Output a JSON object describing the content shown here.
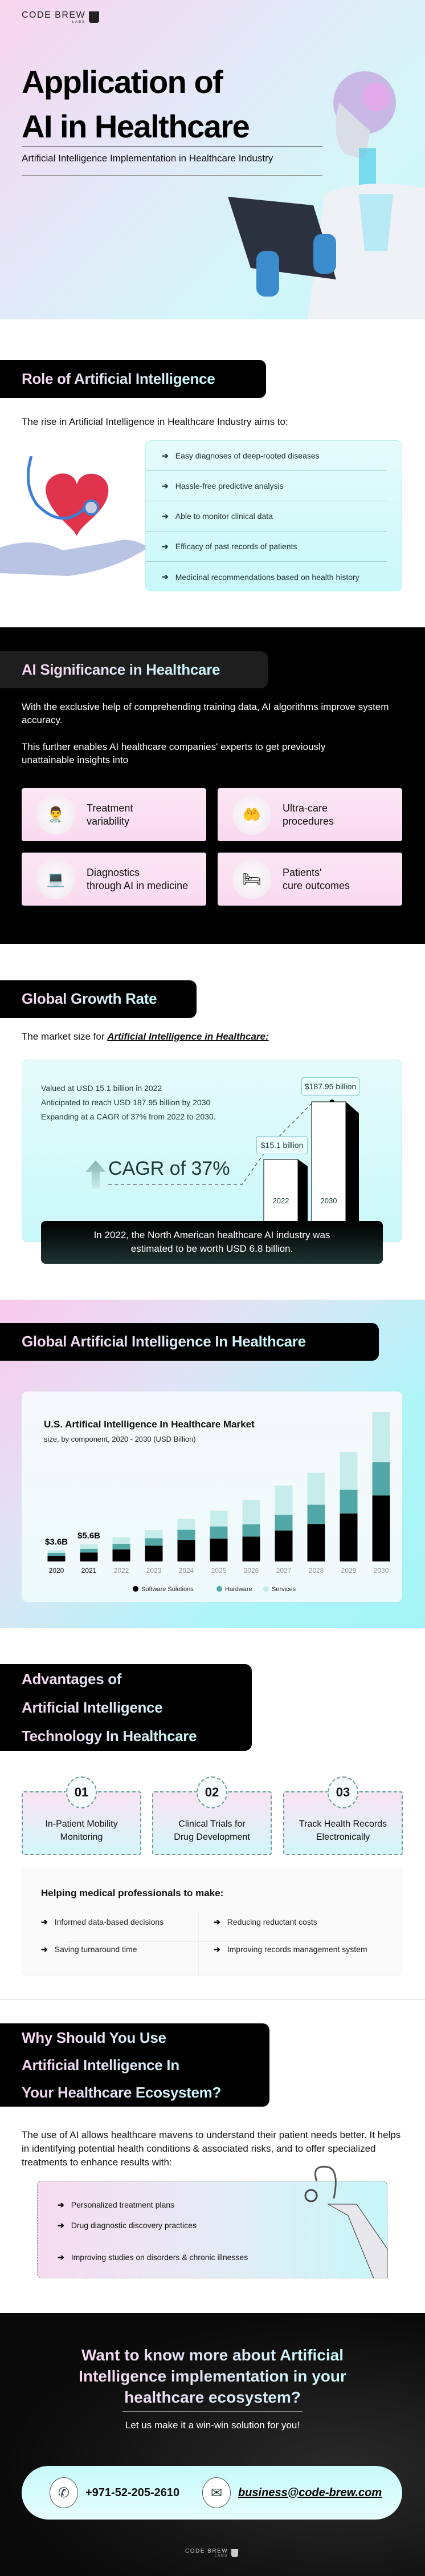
{
  "brand": {
    "name": "CODE BREW",
    "sub": "LABS"
  },
  "hero": {
    "title_line1": "Application of",
    "title_line2": "AI in Healthcare",
    "subtitle": "Artificial Intelligence Implementation in Healthcare Industry"
  },
  "role": {
    "title": "Role of Artificial Intelligence",
    "intro": "The rise in Artificial Intelligence in Healthcare Industry aims to:",
    "items": [
      "Easy diagnoses of deep-rooted diseases",
      "Hassle-free predictive analysis",
      "Able to monitor clinical data",
      "Efficacy of past records of patients",
      "Medicinal recommendations based on health history"
    ]
  },
  "significance": {
    "title": "AI Significance in Healthcare",
    "para1": "With the exclusive help of comprehending training data, AI algorithms improve system accuracy.",
    "para2": "This further enables AI healthcare companies' experts to get previously unattainable insights into",
    "cards": [
      {
        "label": "Treatment\nvariability",
        "icon": "doctor-icon"
      },
      {
        "label": "Ultra-care\nprocedures",
        "icon": "heart-hand-icon"
      },
      {
        "label": "Diagnostics\nthrough AI in medicine",
        "icon": "laptop-diagnostics-icon"
      },
      {
        "label": "Patients'\ncure outcomes",
        "icon": "patient-care-icon"
      }
    ]
  },
  "growth": {
    "title": "Global Growth Rate",
    "intro_prefix": "The market size for ",
    "intro_emphasis": "Artificial Intelligence in Healthcare:",
    "facts": [
      "Valued at USD 15.1 billion in 2022",
      "Anticipated to reach USD 187.95 billion by 2030",
      "Expanding at a CAGR of 37% from 2022 to 2030."
    ],
    "cagr": "CAGR of 37%",
    "bars": [
      {
        "year": "2022",
        "label": "$15.1 billion",
        "value": 15.1
      },
      {
        "year": "2030",
        "label": "$187.95 billion",
        "value": 187.95
      }
    ],
    "banner": "In 2022, the North American healthcare AI industry was estimated to be worth USD 6.8 billion."
  },
  "global": {
    "title": "Global Artificial Intelligence In Healthcare"
  },
  "chart_data": {
    "type": "bar",
    "stacked": true,
    "title": "U.S. Artifical Intelligence In Healthcare Market",
    "subtitle": "size, by component, 2020 - 2030 (USD Billion)",
    "categories": [
      "2020",
      "2021",
      "2022",
      "2023",
      "2024",
      "2025",
      "2026",
      "2027",
      "2028",
      "2029",
      "2030"
    ],
    "series": [
      {
        "name": "Software Solutions",
        "color": "#000000",
        "values": [
          1.8,
          2.9,
          3.9,
          5.1,
          6.9,
          7.4,
          8.0,
          10.0,
          12.1,
          15.5,
          21.3
        ]
      },
      {
        "name": "Hardware",
        "color": "#52a8a6",
        "values": [
          1.0,
          1.2,
          1.8,
          2.4,
          3.3,
          3.9,
          4.0,
          5.0,
          6.2,
          7.6,
          10.7
        ]
      },
      {
        "name": "Services",
        "color": "#c6ecec",
        "values": [
          0.8,
          1.5,
          2.1,
          2.6,
          3.6,
          5.1,
          7.9,
          9.5,
          10.3,
          12.2,
          16.2
        ]
      }
    ],
    "data_labels": [
      {
        "category": "2020",
        "text": "$3.6B"
      },
      {
        "category": "2021",
        "text": "$5.6B"
      }
    ],
    "ylim": [
      0,
      48.2
    ],
    "grid": false,
    "legend": "bottom"
  },
  "advantages": {
    "title_lines": [
      "Advantages of",
      "Artificial Intelligence",
      "Technology In Healthcare"
    ],
    "cards": [
      {
        "num": "01",
        "label": "In-Patient Mobility\nMonitoring"
      },
      {
        "num": "02",
        "label": "Clinical Trials for\nDrug Development"
      },
      {
        "num": "03",
        "label": "Track Health Records\nElectronically"
      }
    ],
    "helping_title": "Helping medical professionals to make:",
    "helping_items": [
      "Informed data-based decisions",
      "Reducing reductant costs",
      "Saving turnaround time",
      "Improving records management system"
    ]
  },
  "why": {
    "title_lines": [
      "Why Should You Use",
      "Artificial Intelligence In",
      "Your Healthcare Ecosystem?"
    ],
    "para": "The use of AI allows healthcare mavens to understand their patient needs better. It helps in identifying potential health conditions & associated risks, and to offer specialized treatments to enhance results with:",
    "items": [
      "Personalized treatment plans",
      "Drug diagnostic discovery practices",
      "Improving studies on disorders & chronic illnesses"
    ]
  },
  "cta": {
    "title": "Want to know more about Artificial Intelligence implementation in your healthcare ecosystem?",
    "subtitle": "Let us make it a win-win solution for you!",
    "phone": "+971-52-205-2610",
    "email": "business@code-brew.com"
  }
}
